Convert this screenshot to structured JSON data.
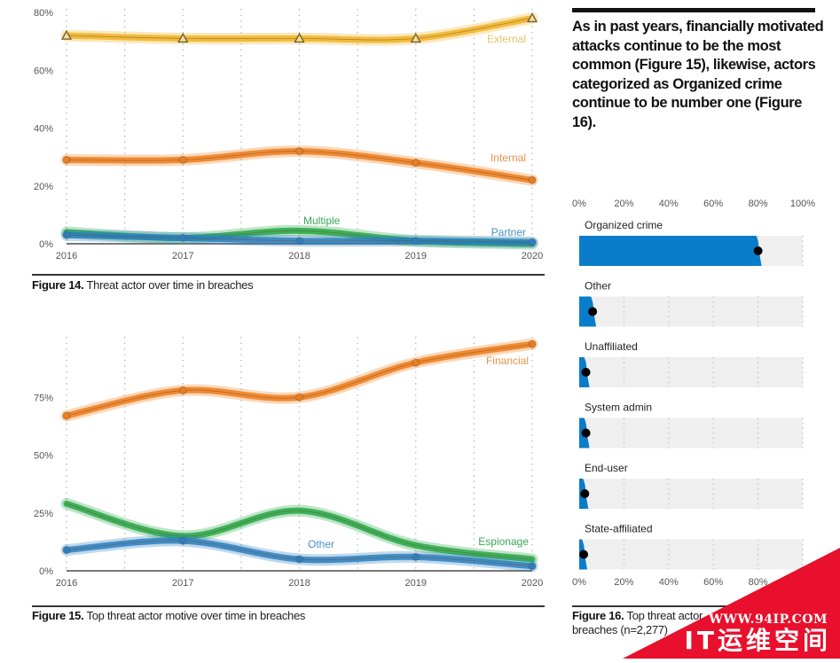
{
  "chart_data": [
    {
      "id": "fig14",
      "type": "line",
      "title": "Threat actor over time in breaches",
      "caption_prefix": "Figure 14.",
      "caption_text": " Threat actor over time in breaches",
      "x": [
        "2016",
        "2017",
        "2018",
        "2019",
        "2020"
      ],
      "ylim": [
        0,
        80
      ],
      "yticks": [
        0,
        20,
        40,
        60,
        80
      ],
      "ytick_labels": [
        "0%",
        "20%",
        "40%",
        "60%",
        "80%"
      ],
      "grid": "vertical-dotted",
      "series": [
        {
          "name": "External",
          "color": "#f0b323",
          "label_color": "#e9c46a",
          "marker": "triangle",
          "values": [
            72,
            71,
            71,
            71,
            78
          ]
        },
        {
          "name": "Internal",
          "color": "#ef7d1a",
          "label_color": "#e8924a",
          "marker": "circle",
          "values": [
            29,
            29,
            32,
            28,
            22
          ]
        },
        {
          "name": "Multiple",
          "color": "#27a844",
          "label_color": "#3aa655",
          "marker": "none",
          "values": [
            4,
            2,
            4.5,
            1,
            0
          ]
        },
        {
          "name": "Partner",
          "color": "#2a7fc1",
          "label_color": "#4a90c8",
          "marker": "circle",
          "values": [
            3,
            2,
            1,
            1,
            0.5
          ]
        }
      ]
    },
    {
      "id": "fig15",
      "type": "line",
      "title": "Top threat actor motive over time in breaches",
      "caption_prefix": "Figure 15.",
      "caption_text": " Top threat actor motive over time in breaches",
      "x": [
        "2016",
        "2017",
        "2018",
        "2019",
        "2020"
      ],
      "ylim": [
        0,
        100
      ],
      "yticks": [
        0,
        25,
        50,
        75
      ],
      "ytick_labels": [
        "0%",
        "25%",
        "50%",
        "75%"
      ],
      "grid": "vertical-dotted",
      "series": [
        {
          "name": "Financial",
          "color": "#ef7d1a",
          "label_color": "#e8924a",
          "marker": "circle",
          "values": [
            67,
            78,
            75,
            90,
            98
          ]
        },
        {
          "name": "Espionage",
          "color": "#27a844",
          "label_color": "#3aa655",
          "marker": "none",
          "values": [
            29,
            15,
            26,
            11,
            5
          ]
        },
        {
          "name": "Other",
          "color": "#2a7fc1",
          "label_color": "#4a90c8",
          "marker": "circle",
          "values": [
            9,
            13,
            5,
            6,
            2
          ]
        }
      ]
    },
    {
      "id": "fig16",
      "type": "bar",
      "orientation": "horizontal",
      "title": "Top threat actor varieties in breaches (n=2,277)",
      "caption_prefix": "Figure 16.",
      "caption_line1": " Top threat actor",
      "caption_line2": "breaches (n=2,277)",
      "xlim": [
        0,
        100
      ],
      "xticks_top": [
        "0%",
        "20%",
        "40%",
        "60%",
        "80%",
        "100%"
      ],
      "xticks_bottom": [
        "0%",
        "20%",
        "40%",
        "60%",
        "80%"
      ],
      "bar_color": "#0a7cc9",
      "track_color": "#efefef",
      "categories": [
        "Organized crime",
        "Other",
        "Unaffiliated",
        "System admin",
        "End-user",
        "State-affiliated"
      ],
      "values": [
        80,
        6,
        3,
        3,
        2.5,
        2
      ]
    }
  ],
  "headline": "As in past years, financially motivated attacks continue to be the most common (Figure 15), likewise, actors categorized as Organized crime continue to be number one (Figure 16).",
  "watermark": {
    "url": "WWW.94IP.COM",
    "name": "IT运维空间",
    "color": "#e8102c"
  }
}
